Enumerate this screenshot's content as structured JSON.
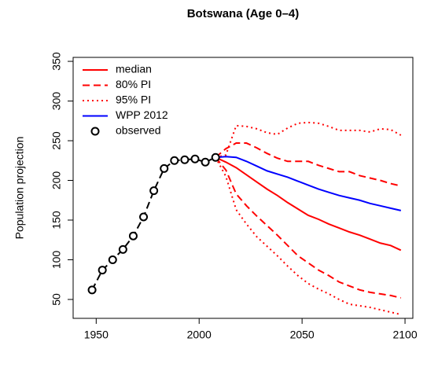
{
  "chart_data": {
    "type": "line",
    "title": "Botswana (Age 0–4)",
    "y_label": "Population projection",
    "xlim": [
      1938.8,
      2103.8
    ],
    "ylim": [
      26.2,
      355
    ],
    "xticks": [
      1950,
      2000,
      2050,
      2100
    ],
    "yticks": [
      50,
      100,
      150,
      200,
      250,
      300,
      350
    ],
    "legend": "top-left",
    "series": [
      {
        "name": "median",
        "color": "#ff0000",
        "style": "solid",
        "x": [
          2008,
          2013,
          2018,
          2023,
          2028,
          2033,
          2038,
          2043,
          2048,
          2053,
          2058,
          2063,
          2068,
          2073,
          2078,
          2083,
          2088,
          2093,
          2098
        ],
        "values": [
          229,
          223,
          216,
          207,
          198,
          189,
          181,
          172,
          164,
          156,
          151,
          145,
          140,
          135,
          131,
          126,
          121,
          118,
          112
        ]
      },
      {
        "name": "80% PI",
        "color": "#ff0000",
        "style": "dashed",
        "x": [
          2008,
          2013,
          2018,
          2023,
          2028,
          2033,
          2038,
          2043,
          2048,
          2053,
          2058,
          2063,
          2068,
          2073,
          2078,
          2083,
          2088,
          2093,
          2098
        ],
        "values": [
          229,
          240,
          247,
          247,
          241,
          234,
          228,
          224,
          224,
          224,
          219,
          215,
          211,
          211,
          206,
          203,
          200,
          196,
          193
        ],
        "values_lower": [
          229,
          213,
          183,
          168,
          155,
          143,
          131,
          118,
          105,
          96,
          87,
          80,
          72,
          67,
          62,
          59,
          57,
          55,
          52
        ]
      },
      {
        "name": "95% PI",
        "color": "#ff0000",
        "style": "dotted",
        "x": [
          2008,
          2013,
          2018,
          2023,
          2028,
          2033,
          2038,
          2043,
          2048,
          2053,
          2058,
          2063,
          2068,
          2073,
          2078,
          2083,
          2088,
          2093,
          2098
        ],
        "values": [
          229,
          232,
          269,
          268,
          265,
          260,
          258,
          266,
          272,
          273,
          272,
          268,
          263,
          263,
          263,
          261,
          265,
          264,
          257
        ],
        "values_lower": [
          229,
          205,
          163,
          145,
          129,
          117,
          105,
          92,
          80,
          70,
          63,
          57,
          50,
          44,
          42,
          40,
          37,
          34,
          31
        ]
      },
      {
        "name": "WPP 2012",
        "color": "#0000ff",
        "style": "solid",
        "x": [
          2008,
          2013,
          2018,
          2023,
          2028,
          2033,
          2038,
          2043,
          2048,
          2053,
          2058,
          2063,
          2068,
          2073,
          2078,
          2083,
          2088,
          2093,
          2098
        ],
        "values": [
          229,
          230,
          229,
          224,
          218,
          212,
          208,
          204,
          199,
          194,
          189,
          185,
          181,
          178,
          175,
          171,
          168,
          165,
          162
        ]
      },
      {
        "name": "observed",
        "color": "#000000",
        "style": "points-dashed",
        "x": [
          1948,
          1953,
          1958,
          1963,
          1968,
          1973,
          1978,
          1983,
          1988,
          1993,
          1998,
          2003,
          2008
        ],
        "values": [
          62,
          87,
          100,
          113,
          130,
          154,
          187,
          215,
          225,
          226,
          227,
          223,
          229
        ]
      }
    ]
  }
}
